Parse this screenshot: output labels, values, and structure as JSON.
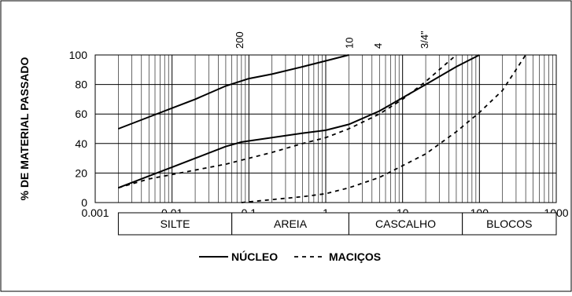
{
  "chart_data": {
    "type": "line",
    "xscale": "log",
    "xlim": [
      0.001,
      1000
    ],
    "ylim": [
      0,
      100
    ],
    "yticks": [
      0,
      20,
      40,
      60,
      80,
      100
    ],
    "xtick_labels": [
      "0.001",
      "0.01",
      "0.1",
      "1",
      "10",
      "100",
      "1000"
    ],
    "xtick_values": [
      0.001,
      0.01,
      0.1,
      1,
      10,
      100,
      1000
    ],
    "ylabel": "% DE MATERIAL PASSADO",
    "xlabel": "",
    "grid": true,
    "sieves": [
      {
        "label": "200",
        "value": 0.075
      },
      {
        "label": "10",
        "value": 2
      },
      {
        "label": "4",
        "value": 4.76
      },
      {
        "label": "3/4\"",
        "value": 19
      }
    ],
    "soil_classes": [
      {
        "label": "SILTE",
        "from": 0.002,
        "to": 0.06
      },
      {
        "label": "AREIA",
        "from": 0.06,
        "to": 2
      },
      {
        "label": "CASCALHO",
        "from": 2,
        "to": 60
      },
      {
        "label": "BLOCOS",
        "from": 60,
        "to": 1000
      }
    ],
    "legend": {
      "position": "bottom",
      "entries": [
        "NÚCLEO",
        "MACIÇOS"
      ]
    },
    "series": [
      {
        "name": "NÚCLEO",
        "style": "solid",
        "curve": "upper",
        "x": [
          0.002,
          0.005,
          0.01,
          0.02,
          0.05,
          0.1,
          0.2,
          0.5,
          1,
          2
        ],
        "y": [
          50,
          58,
          64,
          70,
          79,
          84,
          87,
          92,
          96,
          100
        ]
      },
      {
        "name": "NÚCLEO",
        "style": "solid",
        "curve": "lower",
        "x": [
          0.002,
          0.005,
          0.01,
          0.02,
          0.05,
          0.08,
          0.2,
          0.5,
          1,
          2,
          5,
          10,
          20,
          50,
          100
        ],
        "y": [
          10,
          18,
          24,
          30,
          38,
          41,
          44,
          47,
          49,
          53,
          62,
          71,
          80,
          92,
          100
        ]
      },
      {
        "name": "MACIÇOS",
        "style": "dashed",
        "curve": "upper",
        "x": [
          0.002,
          0.005,
          0.01,
          0.05,
          0.1,
          0.2,
          0.5,
          1,
          2,
          5,
          10,
          20,
          50
        ],
        "y": [
          10,
          16,
          19,
          26,
          30,
          34,
          40,
          44,
          50,
          60,
          70,
          82,
          100
        ]
      },
      {
        "name": "MACIÇOS",
        "style": "dashed",
        "curve": "lower",
        "x": [
          0.08,
          0.2,
          0.5,
          1,
          2,
          5,
          10,
          20,
          50,
          100,
          200,
          400
        ],
        "y": [
          0,
          2,
          4,
          6,
          10,
          17,
          25,
          33,
          48,
          61,
          76,
          100
        ]
      }
    ]
  }
}
